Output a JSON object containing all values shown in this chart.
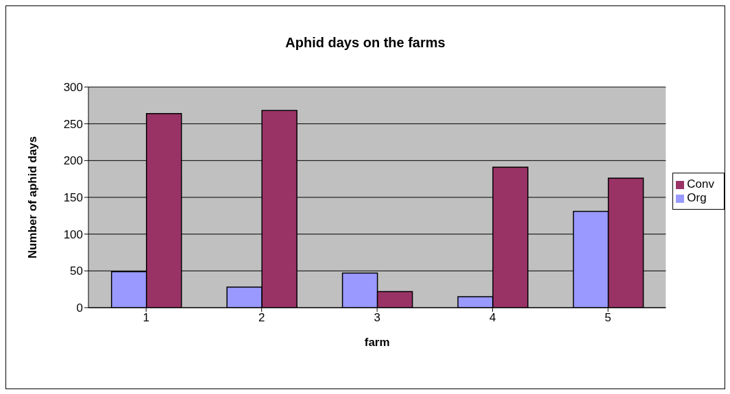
{
  "chart_data": {
    "type": "bar",
    "title": "Aphid days on the farms",
    "xlabel": "farm",
    "ylabel": "Number of aphid days",
    "categories": [
      "1",
      "2",
      "3",
      "4",
      "5"
    ],
    "series": [
      {
        "name": "Org",
        "color": "#9999ff",
        "values": [
          49,
          28,
          47,
          15,
          131
        ]
      },
      {
        "name": "Conv",
        "color": "#993366",
        "values": [
          264,
          268,
          22,
          191,
          176
        ]
      }
    ],
    "ylim": [
      0,
      300
    ],
    "yticks": [
      0,
      50,
      100,
      150,
      200,
      250,
      300
    ],
    "grid": "y",
    "legend": "right"
  }
}
